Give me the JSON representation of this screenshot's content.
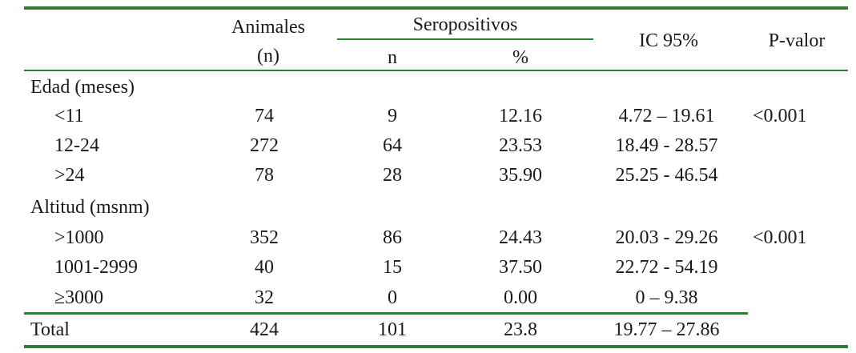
{
  "header": {
    "animales_line1": "Animales",
    "animales_line2": "(n)",
    "seropositivos": "Seropositivos",
    "n": "n",
    "percent": "%",
    "ic": "IC 95%",
    "pvalor": "P-valor"
  },
  "groups": [
    {
      "label": "Edad (meses)",
      "pvalue": "<0.001",
      "rows": [
        {
          "cat": "<11",
          "animales": "74",
          "n": "9",
          "pct": "12.16",
          "ic": "4.72 – 19.61"
        },
        {
          "cat": "12-24",
          "animales": "272",
          "n": "64",
          "pct": "23.53",
          "ic": "18.49 - 28.57"
        },
        {
          "cat": ">24",
          "animales": "78",
          "n": "28",
          "pct": "35.90",
          "ic": "25.25 - 46.54"
        }
      ]
    },
    {
      "label": "Altitud (msnm)",
      "pvalue": "<0.001",
      "rows": [
        {
          "cat": ">1000",
          "animales": "352",
          "n": "86",
          "pct": "24.43",
          "ic": "20.03 - 29.26"
        },
        {
          "cat": "1001-2999",
          "animales": "40",
          "n": "15",
          "pct": "37.50",
          "ic": "22.72 - 54.19"
        },
        {
          "cat": "≥3000",
          "animales": "32",
          "n": "0",
          "pct": "0.00",
          "ic": "0 – 9.38"
        }
      ]
    }
  ],
  "total": {
    "label": "Total",
    "animales": "424",
    "n": "101",
    "pct": "23.8",
    "ic": "19.77 – 27.86"
  },
  "colors": {
    "rule": "#2e7d32",
    "text": "#1a1a1a"
  }
}
